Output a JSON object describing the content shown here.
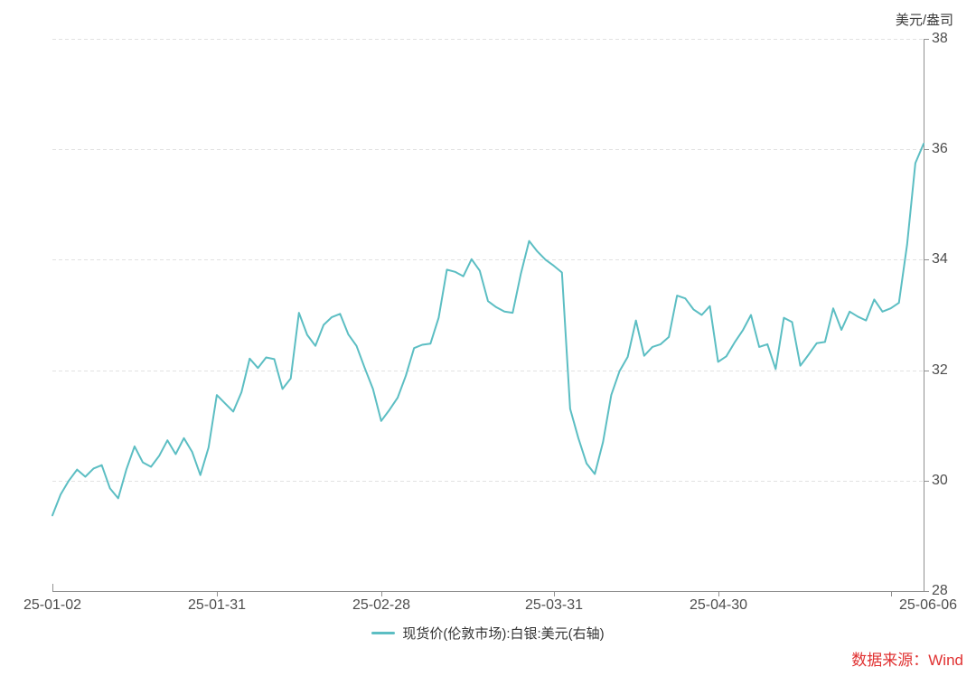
{
  "header": {
    "unit_label": "美元/盎司"
  },
  "legend": {
    "series_label": "现货价(伦敦市场):白银:美元(右轴)",
    "marker_color": "#5cbec3"
  },
  "footer": {
    "source_label": "数据来源：Wind",
    "source_color": "#e03232"
  },
  "chart_data": {
    "type": "line",
    "title": "",
    "legend_position": "bottom-center",
    "grid": "horizontal-dashed",
    "line_color": "#5cbec3",
    "axis_color": "#909090",
    "grid_color": "#e2e2e2",
    "y_axis": {
      "position": "right",
      "unit": "美元/盎司",
      "min": 28,
      "max": 38,
      "ticks": [
        28,
        30,
        32,
        34,
        36,
        38
      ]
    },
    "x_axis": {
      "tick_labels": [
        "25-01-02",
        "25-01-31",
        "25-02-28",
        "25-03-31",
        "25-04-30",
        "25-06-06"
      ],
      "label_indices": [
        0,
        20,
        40,
        61,
        81,
        106
      ],
      "tick_mark_indices": [
        20,
        40,
        61,
        81,
        102
      ]
    },
    "series": [
      {
        "name": "现货价(伦敦市场):白银:美元(右轴)",
        "color": "#5cbec3",
        "dates": [
          "25-01-02",
          "25-01-03",
          "25-01-06",
          "25-01-07",
          "25-01-08",
          "25-01-10",
          "25-01-13",
          "25-01-14",
          "25-01-15",
          "25-01-16",
          "25-01-17",
          "25-01-20",
          "25-01-21",
          "25-01-22",
          "25-01-23",
          "25-01-24",
          "25-01-27",
          "25-01-28",
          "25-01-29",
          "25-01-30",
          "25-01-31",
          "25-02-03",
          "25-02-04",
          "25-02-05",
          "25-02-06",
          "25-02-07",
          "25-02-10",
          "25-02-11",
          "25-02-12",
          "25-02-13",
          "25-02-14",
          "25-02-17",
          "25-02-18",
          "25-02-19",
          "25-02-20",
          "25-02-21",
          "25-02-24",
          "25-02-25",
          "25-02-26",
          "25-02-27",
          "25-02-28",
          "25-03-03",
          "25-03-04",
          "25-03-05",
          "25-03-06",
          "25-03-07",
          "25-03-10",
          "25-03-11",
          "25-03-12",
          "25-03-13",
          "25-03-14",
          "25-03-17",
          "25-03-18",
          "25-03-19",
          "25-03-20",
          "25-03-21",
          "25-03-24",
          "25-03-25",
          "25-03-26",
          "25-03-27",
          "25-03-28",
          "25-03-31",
          "25-04-01",
          "25-04-02",
          "25-04-03",
          "25-04-04",
          "25-04-07",
          "25-04-08",
          "25-04-09",
          "25-04-10",
          "25-04-11",
          "25-04-14",
          "25-04-15",
          "25-04-16",
          "25-04-17",
          "25-04-22",
          "25-04-23",
          "25-04-24",
          "25-04-25",
          "25-04-28",
          "25-04-29",
          "25-04-30",
          "25-05-01",
          "25-05-02",
          "25-05-06",
          "25-05-07",
          "25-05-08",
          "25-05-09",
          "25-05-12",
          "25-05-13",
          "25-05-14",
          "25-05-15",
          "25-05-16",
          "25-05-19",
          "25-05-20",
          "25-05-21",
          "25-05-22",
          "25-05-23",
          "25-05-27",
          "25-05-28",
          "25-05-29",
          "25-05-30",
          "25-06-02",
          "25-06-03",
          "25-06-04",
          "25-06-05",
          "25-06-06"
        ],
        "values": [
          29.37,
          29.75,
          30.0,
          30.2,
          30.07,
          30.22,
          30.28,
          29.86,
          29.68,
          30.2,
          30.62,
          30.33,
          30.25,
          30.45,
          30.73,
          30.48,
          30.77,
          30.52,
          30.1,
          30.6,
          31.55,
          31.4,
          31.25,
          31.6,
          32.21,
          32.04,
          32.23,
          32.2,
          31.66,
          31.85,
          33.04,
          32.64,
          32.44,
          32.82,
          32.96,
          33.02,
          32.65,
          32.44,
          32.04,
          31.66,
          31.08,
          31.28,
          31.5,
          31.9,
          32.4,
          32.46,
          32.48,
          32.95,
          33.82,
          33.78,
          33.7,
          34.01,
          33.8,
          33.25,
          33.14,
          33.06,
          33.04,
          33.75,
          34.34,
          34.15,
          34.0,
          33.89,
          33.77,
          31.3,
          30.77,
          30.31,
          30.12,
          30.7,
          31.55,
          31.98,
          32.24,
          32.9,
          32.26,
          32.42,
          32.47,
          32.6,
          33.35,
          33.3,
          33.1,
          33.0,
          33.16,
          32.15,
          32.25,
          32.5,
          32.72,
          33.0,
          32.42,
          32.47,
          32.02,
          32.95,
          32.87,
          32.08,
          32.28,
          32.49,
          32.51,
          33.12,
          32.73,
          33.06,
          32.97,
          32.9,
          33.28,
          33.06,
          33.12,
          33.22,
          34.28,
          35.75,
          36.1
        ]
      }
    ]
  }
}
